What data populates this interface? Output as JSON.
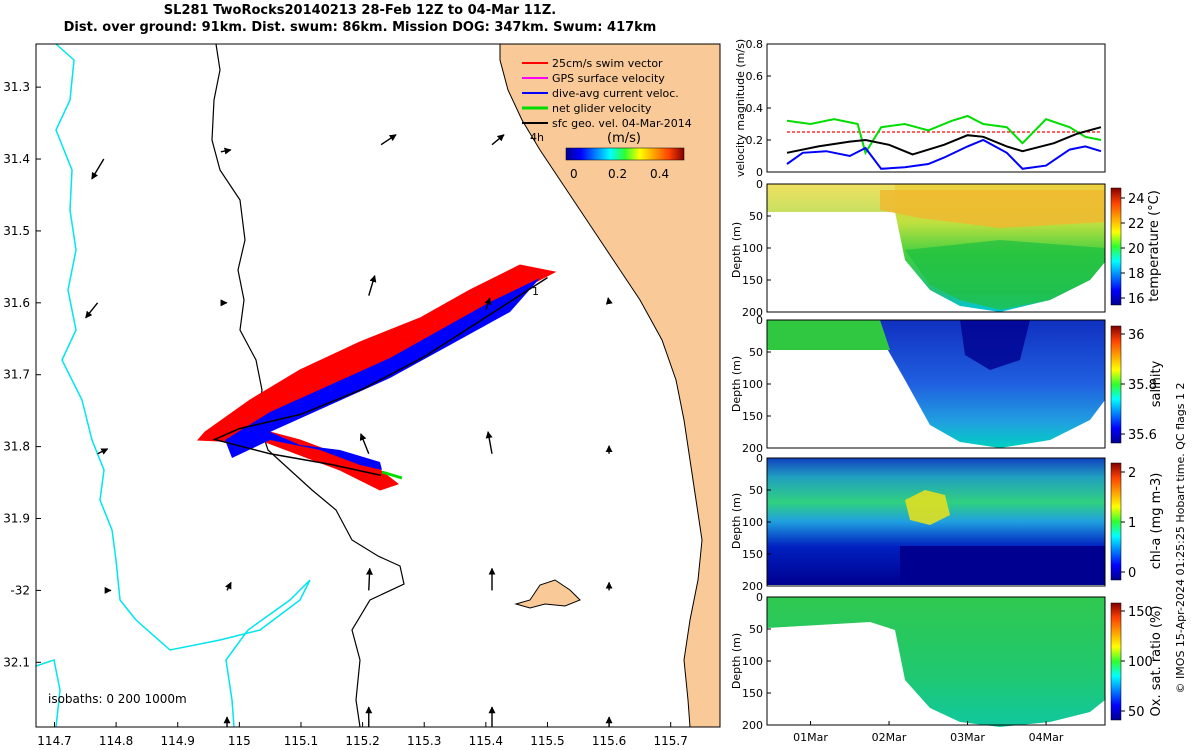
{
  "header": {
    "title_line1": "SL281 TwoRocks20140213 28-Feb 12Z to 04-Mar 11Z.",
    "title_line2": "Dist. over ground: 91km. Dist. swum: 86km. Mission DOG: 347km. Swum: 417km"
  },
  "colors": {
    "land": "#f9c998",
    "shelf": "#00e5ee",
    "swim": "#ff0000",
    "current": "#0000ff",
    "net": "#00dd00",
    "track": "#000000",
    "gps": "#ff00ff"
  },
  "chart_data": [
    {
      "type": "map",
      "name": "glider-track-map",
      "xlim": [
        114.67,
        115.78
      ],
      "ylim": [
        -32.19,
        -31.24
      ],
      "x_ticks": [
        114.7,
        114.8,
        114.9,
        115.0,
        115.1,
        115.2,
        115.3,
        115.4,
        115.5,
        115.6,
        115.7
      ],
      "x_tick_labels": [
        "114.7",
        "114.8",
        "114.9",
        "115",
        "115.1",
        "115.2",
        "115.3",
        "115.4",
        "115.5",
        "115.6",
        "115.7"
      ],
      "y_ticks": [
        -31.3,
        -31.4,
        -31.5,
        -31.6,
        -31.7,
        -31.8,
        -31.9,
        -32.0,
        -32.1
      ],
      "y_tick_labels": [
        "31.3",
        "31.4",
        "31.5",
        "31.6",
        "31.7",
        "31.8",
        "31.9",
        "-32",
        "32.1"
      ],
      "legend": [
        {
          "label": "25cm/s swim vector",
          "color": "#ff0000"
        },
        {
          "label": "GPS surface velocity",
          "color": "#ff00ff"
        },
        {
          "label": "dive-avg current veloc.",
          "color": "#0000ff"
        },
        {
          "label": "net glider velocity",
          "color": "#00dd00"
        },
        {
          "label": "sfc geo. vel. 04-Mar-2014",
          "color": "#000000"
        }
      ],
      "legend_position": "top-right",
      "colorbar": {
        "label": "(m/s)",
        "ticks": [
          "0",
          "0.2",
          "0.4"
        ],
        "range": [
          0,
          0.5
        ]
      },
      "annotations": {
        "marker_start": "1",
        "marker_time": "4h",
        "isobaths": "isobaths: 0   200  1000m"
      },
      "track": [
        [
          115.5,
          -31.565
        ],
        [
          115.4,
          -31.62
        ],
        [
          115.3,
          -31.675
        ],
        [
          115.2,
          -31.72
        ],
        [
          115.1,
          -31.755
        ],
        [
          115.0,
          -31.775
        ],
        [
          114.96,
          -31.79
        ],
        [
          115.05,
          -31.81
        ],
        [
          115.15,
          -31.825
        ],
        [
          115.23,
          -31.84
        ]
      ],
      "surface_vectors": [
        [
          114.78,
          -31.4,
          -0.12,
          -0.2
        ],
        [
          114.97,
          -31.39,
          0.1,
          0.02
        ],
        [
          115.23,
          -31.38,
          0.15,
          0.1
        ],
        [
          115.41,
          -31.38,
          0.12,
          0.1
        ],
        [
          114.77,
          -31.6,
          -0.12,
          -0.15
        ],
        [
          114.97,
          -31.6,
          0.06,
          0.0
        ],
        [
          115.21,
          -31.59,
          0.06,
          0.2
        ],
        [
          115.4,
          -31.61,
          0.04,
          0.12
        ],
        [
          115.6,
          -31.6,
          -0.01,
          0.05
        ],
        [
          114.77,
          -31.81,
          0.1,
          0.05
        ],
        [
          115.21,
          -31.81,
          -0.08,
          0.2
        ],
        [
          115.41,
          -31.81,
          -0.04,
          0.22
        ],
        [
          115.6,
          -31.81,
          0.0,
          0.08
        ],
        [
          114.79,
          -32.0,
          0.01,
          0.0
        ],
        [
          114.98,
          -32.0,
          0.04,
          0.08
        ],
        [
          115.21,
          -32.0,
          0.01,
          0.22
        ],
        [
          115.41,
          -32.0,
          0.0,
          0.22
        ],
        [
          115.6,
          -32.0,
          0.0,
          0.08
        ],
        [
          115.21,
          -32.19,
          0.0,
          0.2
        ],
        [
          115.41,
          -32.19,
          0.0,
          0.2
        ],
        [
          115.6,
          -32.19,
          0.0,
          0.1
        ],
        [
          114.98,
          -32.19,
          0.0,
          0.1
        ]
      ]
    },
    {
      "type": "line",
      "name": "velocity-timeseries",
      "ylabel": "velocity magnitude (m/s)",
      "ylim": [
        0,
        0.8
      ],
      "y_ticks": [
        "0",
        "0.2",
        "0.4",
        "0.6",
        "0.8"
      ],
      "x_range_days": [
        0,
        4
      ],
      "series": [
        {
          "name": "swim",
          "color": "#ff0000",
          "x": [
            0,
            4
          ],
          "values": [
            0.25,
            0.25
          ]
        },
        {
          "name": "net glider velocity",
          "color": "#00dd00",
          "x": [
            0,
            0.3,
            0.6,
            0.9,
            1.0,
            1.2,
            1.5,
            1.8,
            2.1,
            2.3,
            2.5,
            2.8,
            3.0,
            3.3,
            3.6,
            3.8,
            4.0
          ],
          "values": [
            0.32,
            0.3,
            0.33,
            0.3,
            0.12,
            0.28,
            0.3,
            0.26,
            0.32,
            0.35,
            0.3,
            0.28,
            0.18,
            0.33,
            0.28,
            0.22,
            0.2
          ]
        },
        {
          "name": "dive-avg current",
          "color": "#0000ff",
          "x": [
            0,
            0.2,
            0.5,
            0.8,
            1.0,
            1.2,
            1.5,
            1.8,
            2.0,
            2.3,
            2.5,
            2.8,
            3.0,
            3.3,
            3.6,
            3.8,
            4.0
          ],
          "values": [
            0.05,
            0.12,
            0.13,
            0.1,
            0.15,
            0.02,
            0.03,
            0.05,
            0.09,
            0.16,
            0.2,
            0.12,
            0.02,
            0.04,
            0.14,
            0.16,
            0.13
          ]
        },
        {
          "name": "sfc geo vel",
          "color": "#000000",
          "x": [
            0,
            0.4,
            0.8,
            1.0,
            1.3,
            1.6,
            2.0,
            2.3,
            2.5,
            2.8,
            3.0,
            3.4,
            3.7,
            4.0
          ],
          "values": [
            0.12,
            0.16,
            0.19,
            0.2,
            0.17,
            0.11,
            0.17,
            0.23,
            0.22,
            0.16,
            0.13,
            0.18,
            0.24,
            0.28
          ]
        }
      ]
    },
    {
      "type": "heatmap",
      "name": "temperature-section",
      "ylabel": "Depth (m)",
      "y_ticks": [
        "0",
        "50",
        "100",
        "150",
        "200"
      ],
      "ylim": [
        0,
        200
      ],
      "colorbar": {
        "label": "temperature (°C)",
        "ticks": [
          "24",
          "22",
          "20",
          "18",
          "16"
        ],
        "range": [
          15.5,
          25.5
        ]
      }
    },
    {
      "type": "heatmap",
      "name": "salinity-section",
      "ylabel": "Depth (m)",
      "y_ticks": [
        "0",
        "50",
        "100",
        "150",
        "200"
      ],
      "ylim": [
        0,
        200
      ],
      "colorbar": {
        "label": "salinity",
        "ticks": [
          "36",
          "35.8",
          "35.6"
        ],
        "range": [
          35.5,
          36.1
        ]
      }
    },
    {
      "type": "heatmap",
      "name": "chlorophyll-section",
      "ylabel": "Depth (m)",
      "y_ticks": [
        "0",
        "50",
        "100",
        "150",
        "200"
      ],
      "ylim": [
        0,
        200
      ],
      "colorbar": {
        "label": "chl-a (mg m-3)",
        "ticks": [
          "2",
          "1",
          "0"
        ],
        "range": [
          0,
          2
        ]
      }
    },
    {
      "type": "heatmap",
      "name": "oxygen-section",
      "ylabel": "Depth (m)",
      "y_ticks": [
        "0",
        "50",
        "100",
        "150",
        "200"
      ],
      "ylim": [
        0,
        200
      ],
      "colorbar": {
        "label": "Ox. sat. ratio (%)",
        "ticks": [
          "150",
          "100",
          "50"
        ],
        "range": [
          20,
          175
        ]
      },
      "x_tick_labels": [
        "01Mar",
        "02Mar",
        "03Mar",
        "04Mar"
      ]
    }
  ],
  "side_note": "© IMOS 15-Apr-2024 01:25:25 Hobart time. QC flags 1  2"
}
